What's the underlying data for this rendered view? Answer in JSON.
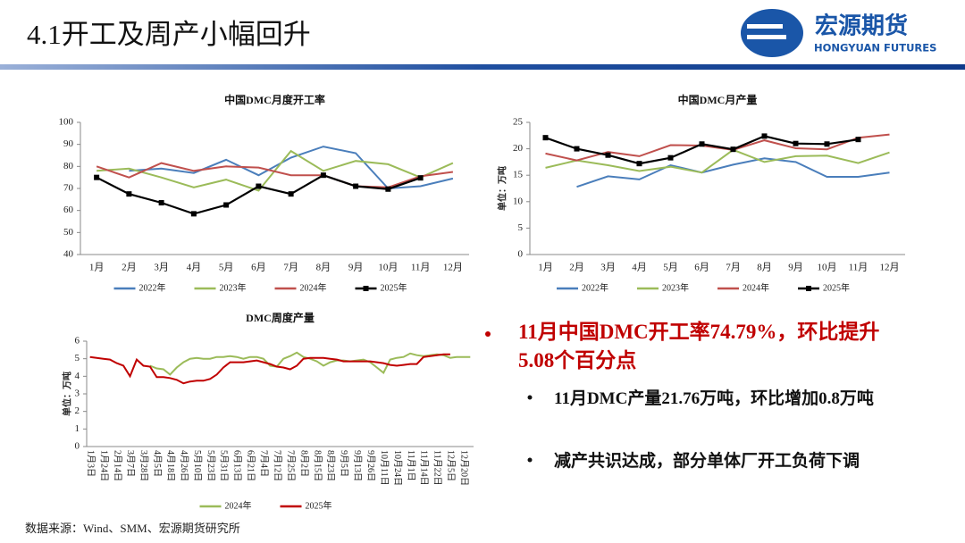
{
  "header": {
    "title": "4.1开工及周产小幅回升",
    "logo_cn": "宏源期货",
    "logo_en": "HONGYUAN FUTURES"
  },
  "bullets": {
    "main": "11月中国DMC开工率74.79%，环比提升5.08个百分点",
    "sub": [
      "11月DMC产量21.76万吨，环比增加0.8万吨",
      "减产共识达成，部分单体厂开工负荷下调"
    ]
  },
  "source": "数据来源：Wind、SMM、宏源期货研究所",
  "chart_data": [
    {
      "type": "line",
      "title": "中国DMC月度开工率",
      "categories": [
        "1月",
        "2月",
        "3月",
        "4月",
        "5月",
        "6月",
        "7月",
        "8月",
        "9月",
        "10月",
        "11月",
        "12月"
      ],
      "ylim": [
        40,
        100
      ],
      "yticks": [
        40,
        50,
        60,
        70,
        80,
        90,
        100
      ],
      "series": [
        {
          "name": "2022年",
          "color": "#4a7ebb",
          "values": [
            null,
            78,
            79,
            77,
            83,
            76,
            84,
            89,
            86,
            70,
            71,
            74.5
          ]
        },
        {
          "name": "2023年",
          "color": "#9bbb59",
          "values": [
            78,
            79,
            75,
            70.5,
            74,
            69,
            87,
            78,
            82.5,
            81,
            75,
            81.5
          ]
        },
        {
          "name": "2024年",
          "color": "#c0504d",
          "values": [
            80,
            75,
            81.5,
            78,
            80,
            79.5,
            76,
            76,
            71,
            70.5,
            75.5,
            77.5
          ]
        },
        {
          "name": "2025年",
          "color": "#000000",
          "marker": "square",
          "values": [
            75,
            67.5,
            63.5,
            58.5,
            62.5,
            71,
            67.5,
            76,
            71,
            69.7,
            74.79,
            null
          ]
        }
      ]
    },
    {
      "type": "line",
      "title": "中国DMC月产量",
      "ylabel": "单位：万吨",
      "categories": [
        "1月",
        "2月",
        "3月",
        "4月",
        "5月",
        "6月",
        "7月",
        "8月",
        "9月",
        "10月",
        "11月",
        "12月"
      ],
      "ylim": [
        0,
        25
      ],
      "yticks": [
        0,
        5,
        10,
        15,
        20,
        25
      ],
      "series": [
        {
          "name": "2022年",
          "color": "#4a7ebb",
          "values": [
            null,
            12.8,
            14.8,
            14.2,
            16.9,
            15.5,
            17,
            18.2,
            17.5,
            14.7,
            14.7,
            15.5
          ]
        },
        {
          "name": "2023年",
          "color": "#9bbb59",
          "values": [
            16.4,
            17.8,
            16.9,
            15.8,
            16.6,
            15.5,
            19.8,
            17.5,
            18.6,
            18.7,
            17.3,
            19.3
          ]
        },
        {
          "name": "2024年",
          "color": "#c0504d",
          "values": [
            19.1,
            17.8,
            19.4,
            18.6,
            20.7,
            20.6,
            19.8,
            21.6,
            20.1,
            19.9,
            22.1,
            22.7
          ]
        },
        {
          "name": "2025年",
          "color": "#000000",
          "marker": "square",
          "values": [
            22.1,
            20,
            18.8,
            17.2,
            18.3,
            20.9,
            19.9,
            22.4,
            21,
            20.9,
            21.76,
            null
          ]
        }
      ]
    },
    {
      "type": "line",
      "title": "DMC周度产量",
      "ylabel": "单位：万吨",
      "rotate_x_labels": true,
      "categories": [
        "1月3日",
        null,
        "1月24日",
        null,
        "2月14日",
        null,
        "3月7日",
        null,
        "3月28日",
        null,
        "4月5日",
        null,
        "4月18日",
        null,
        "4月26日",
        null,
        "5月10日",
        null,
        "5月23日",
        null,
        "5月31日",
        null,
        "6月13日",
        null,
        "6月21日",
        null,
        "7月4日",
        null,
        "7月12日",
        null,
        "7月25日",
        null,
        "8月2日",
        null,
        "8月15日",
        null,
        "8月23日",
        null,
        "9月5日",
        null,
        "9月13日",
        null,
        "9月26日",
        null,
        "10月11日",
        null,
        "10月24日",
        null,
        "11月1日",
        null,
        "11月14日",
        null,
        "11月22日",
        null,
        "12月5日",
        null,
        "12月20日",
        null
      ],
      "ylim": [
        0,
        6
      ],
      "yticks": [
        0,
        1,
        2,
        3,
        4,
        5,
        6
      ],
      "series": [
        {
          "name": "2024年",
          "color": "#9bbb59",
          "values": [
            null,
            null,
            null,
            null,
            null,
            null,
            null,
            null,
            null,
            4.6,
            4.45,
            4.4,
            4.1,
            4.5,
            4.8,
            5.0,
            5.05,
            5.0,
            5.0,
            5.1,
            5.1,
            5.15,
            5.1,
            5.0,
            5.1,
            5.1,
            5.0,
            4.6,
            4.55,
            5.0,
            5.15,
            5.35,
            5.1,
            5.0,
            4.85,
            4.6,
            4.8,
            4.9,
            4.9,
            4.85,
            4.9,
            4.95,
            4.8,
            4.5,
            4.2,
            4.95,
            5.05,
            5.1,
            5.3,
            5.2,
            5.15,
            5.2,
            5.25,
            5.2,
            5.05,
            5.1,
            5.1,
            5.1
          ]
        },
        {
          "name": "2025年",
          "color": "#c00000",
          "values": [
            5.1,
            5.05,
            5.0,
            4.95,
            4.75,
            4.6,
            4.0,
            4.95,
            4.6,
            4.55,
            3.95,
            3.95,
            3.9,
            3.8,
            3.6,
            3.7,
            3.75,
            3.75,
            3.85,
            4.1,
            4.5,
            4.8,
            4.8,
            4.8,
            4.85,
            4.9,
            4.8,
            4.7,
            4.55,
            4.5,
            4.4,
            4.6,
            5.0,
            5.05,
            5.05,
            5.05,
            5.0,
            4.95,
            4.85,
            4.85,
            4.85,
            4.85,
            4.85,
            4.8,
            4.75,
            4.65,
            4.6,
            4.65,
            4.7,
            4.7,
            5.1,
            5.15,
            5.2,
            5.25,
            5.25,
            null,
            null,
            null
          ]
        }
      ]
    }
  ]
}
